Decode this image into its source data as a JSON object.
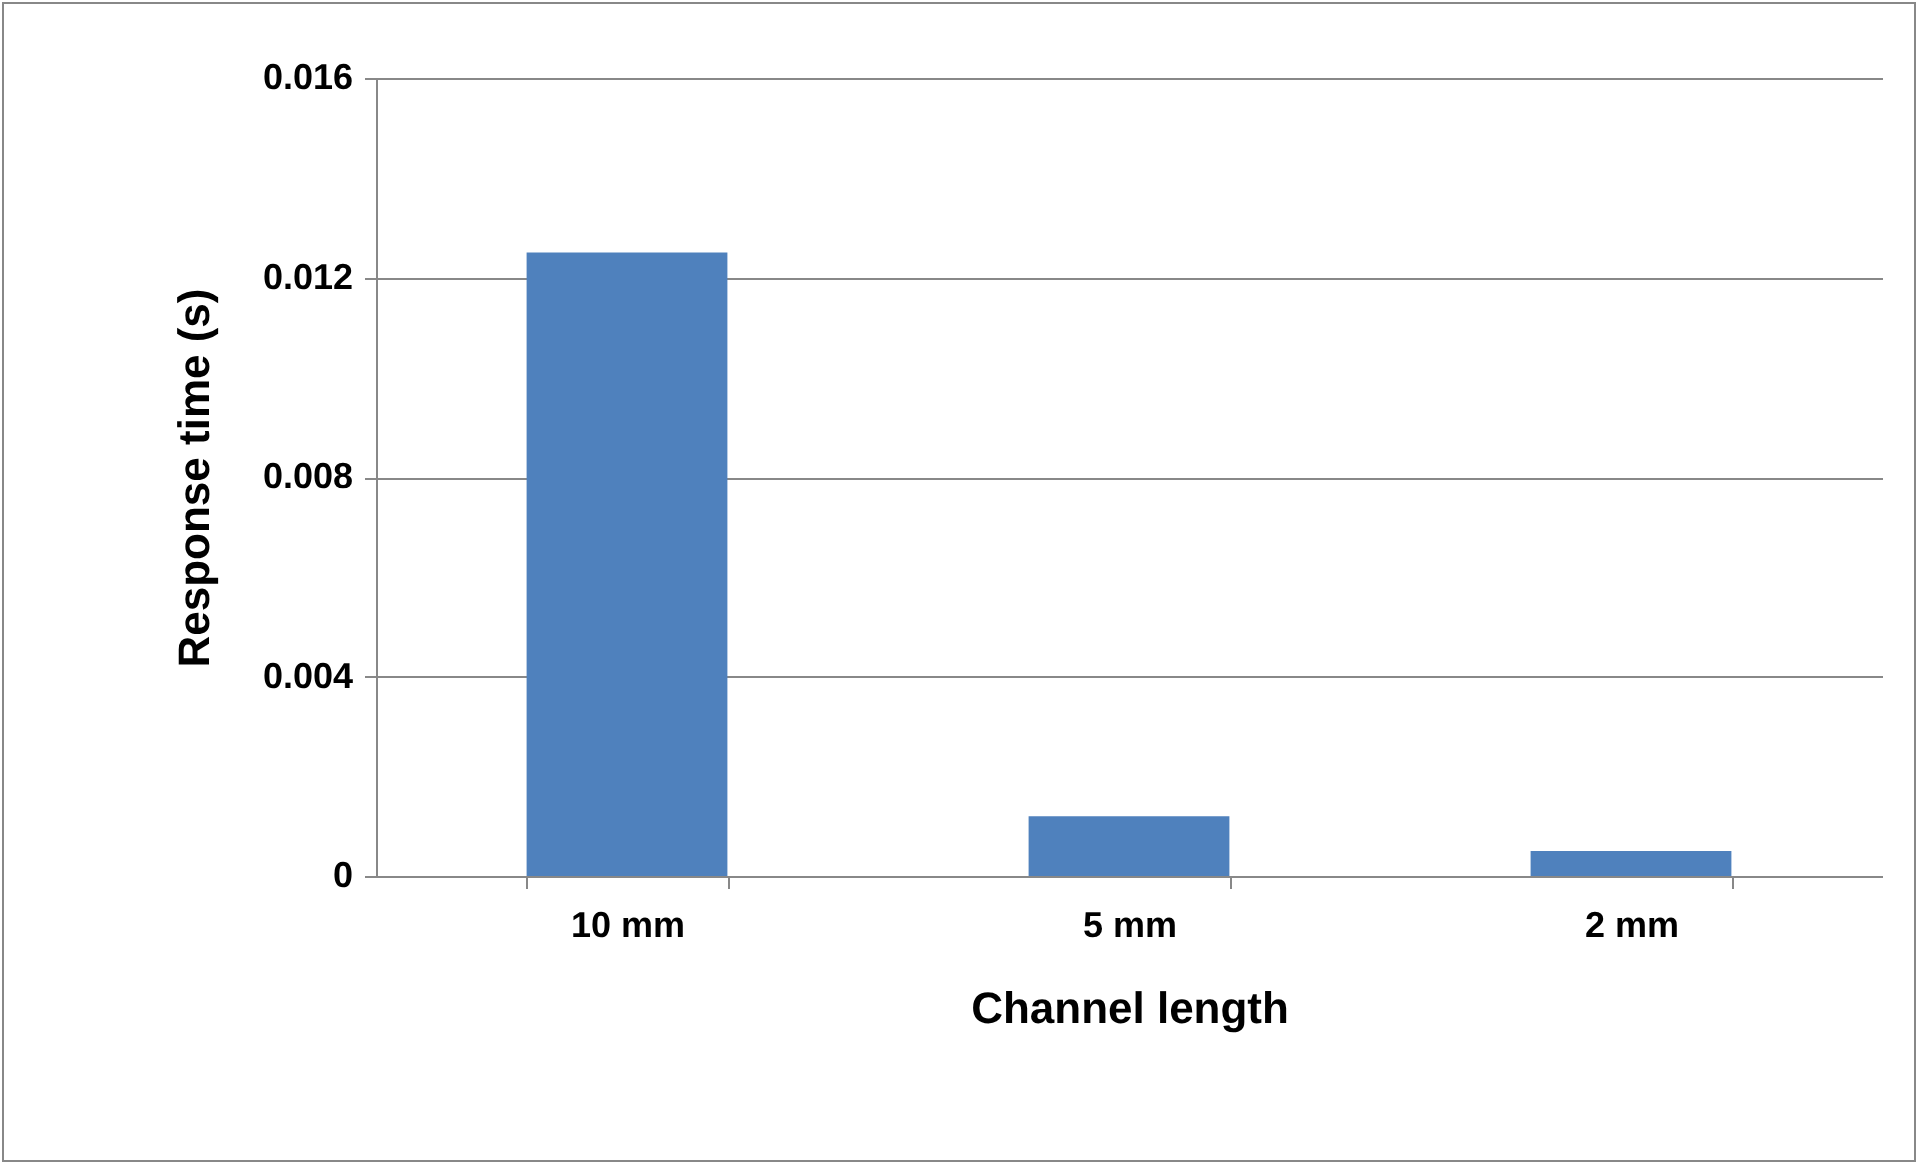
{
  "chart_data": {
    "type": "bar",
    "xlabel": "Channel length",
    "ylabel": "Response time (s)",
    "categories": [
      "10 mm",
      "5 mm",
      "2 mm"
    ],
    "values": [
      0.0125,
      0.0012,
      0.0005
    ],
    "color": "#4f81bd",
    "ylim": [
      0,
      0.016
    ],
    "yticks": [
      0,
      0.004,
      0.008,
      0.012,
      0.016
    ],
    "grid": "y"
  }
}
